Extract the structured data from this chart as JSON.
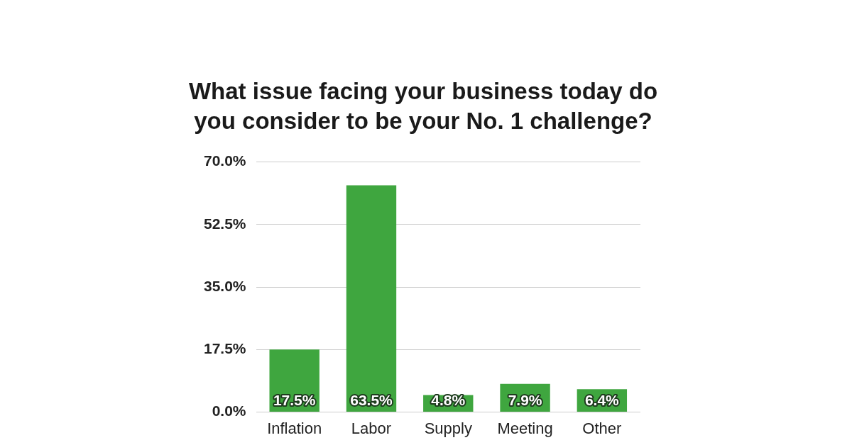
{
  "chart_data": {
    "type": "bar",
    "title": "What issue facing your business today do you consider to be your No. 1 challenge?",
    "categories": [
      "Inflation",
      "Labor",
      "Supply",
      "Meeting",
      "Other"
    ],
    "values": [
      17.5,
      63.5,
      4.8,
      7.9,
      6.4
    ],
    "value_labels": [
      "17.5%",
      "63.5%",
      "4.8%",
      "7.9%",
      "6.4%"
    ],
    "color": "#3fa63f",
    "ylim": [
      0,
      70
    ],
    "yticks": [
      {
        "value": 0,
        "label": "0.0%"
      },
      {
        "value": 17.5,
        "label": "17.5%"
      },
      {
        "value": 35,
        "label": "35.0%"
      },
      {
        "value": 52.5,
        "label": "52.5%"
      },
      {
        "value": 70,
        "label": "70.0%"
      }
    ],
    "grid": "y",
    "legend": false
  }
}
